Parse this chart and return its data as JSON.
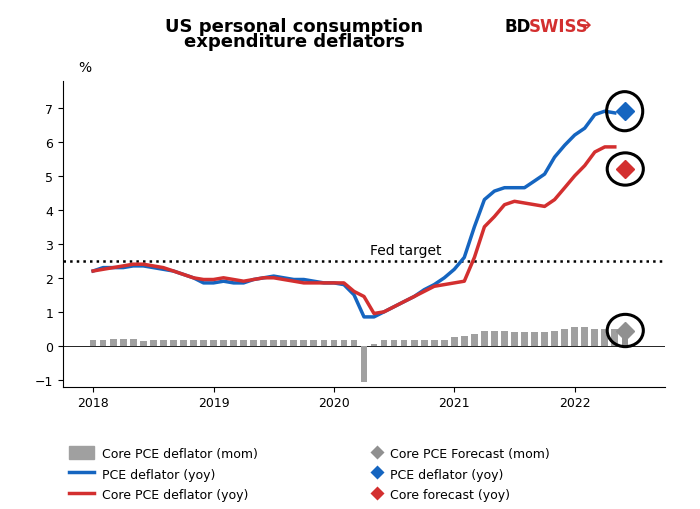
{
  "title_line1": "US personal consumption",
  "title_line2": "expenditure deflators",
  "ylabel": "%",
  "ylim": [
    -1.2,
    7.8
  ],
  "yticks": [
    -1,
    0,
    1,
    2,
    3,
    4,
    5,
    6,
    7
  ],
  "xlim": [
    2017.75,
    2022.75
  ],
  "fed_target": 2.5,
  "fed_target_label": "Fed target",
  "background_color": "#ffffff",
  "bar_dates": [
    2018.0,
    2018.083,
    2018.167,
    2018.25,
    2018.333,
    2018.417,
    2018.5,
    2018.583,
    2018.667,
    2018.75,
    2018.833,
    2018.917,
    2019.0,
    2019.083,
    2019.167,
    2019.25,
    2019.333,
    2019.417,
    2019.5,
    2019.583,
    2019.667,
    2019.75,
    2019.833,
    2019.917,
    2020.0,
    2020.083,
    2020.167,
    2020.25,
    2020.333,
    2020.417,
    2020.5,
    2020.583,
    2020.667,
    2020.75,
    2020.833,
    2020.917,
    2021.0,
    2021.083,
    2021.167,
    2021.25,
    2021.333,
    2021.417,
    2021.5,
    2021.583,
    2021.667,
    2021.75,
    2021.833,
    2021.917,
    2022.0,
    2022.083,
    2022.167,
    2022.25,
    2022.333
  ],
  "bar_values": [
    0.18,
    0.18,
    0.2,
    0.2,
    0.2,
    0.15,
    0.18,
    0.18,
    0.18,
    0.18,
    0.18,
    0.18,
    0.18,
    0.18,
    0.18,
    0.18,
    0.18,
    0.18,
    0.18,
    0.18,
    0.18,
    0.18,
    0.18,
    0.18,
    0.18,
    0.18,
    0.18,
    -1.05,
    0.05,
    0.18,
    0.18,
    0.18,
    0.18,
    0.18,
    0.18,
    0.18,
    0.25,
    0.3,
    0.35,
    0.45,
    0.45,
    0.45,
    0.4,
    0.4,
    0.4,
    0.4,
    0.45,
    0.5,
    0.55,
    0.55,
    0.5,
    0.5,
    0.5
  ],
  "bar_forecast_date": 2022.417,
  "bar_forecast_value": 0.45,
  "pce_dates": [
    2018.0,
    2018.083,
    2018.167,
    2018.25,
    2018.333,
    2018.417,
    2018.5,
    2018.583,
    2018.667,
    2018.75,
    2018.833,
    2018.917,
    2019.0,
    2019.083,
    2019.167,
    2019.25,
    2019.333,
    2019.417,
    2019.5,
    2019.583,
    2019.667,
    2019.75,
    2019.833,
    2019.917,
    2020.0,
    2020.083,
    2020.167,
    2020.25,
    2020.333,
    2020.417,
    2020.5,
    2020.583,
    2020.667,
    2020.75,
    2020.833,
    2020.917,
    2021.0,
    2021.083,
    2021.167,
    2021.25,
    2021.333,
    2021.417,
    2021.5,
    2021.583,
    2021.667,
    2021.75,
    2021.833,
    2021.917,
    2022.0,
    2022.083,
    2022.167,
    2022.25,
    2022.333
  ],
  "pce_values": [
    2.2,
    2.3,
    2.3,
    2.3,
    2.35,
    2.35,
    2.3,
    2.25,
    2.2,
    2.1,
    2.0,
    1.85,
    1.85,
    1.9,
    1.85,
    1.85,
    1.95,
    2.0,
    2.05,
    2.0,
    1.95,
    1.95,
    1.9,
    1.85,
    1.85,
    1.8,
    1.5,
    0.85,
    0.85,
    1.0,
    1.15,
    1.3,
    1.45,
    1.65,
    1.8,
    2.0,
    2.25,
    2.6,
    3.5,
    4.3,
    4.55,
    4.65,
    4.65,
    4.65,
    4.85,
    5.05,
    5.55,
    5.9,
    6.2,
    6.4,
    6.8,
    6.9,
    6.85
  ],
  "pce_forecast_value": 6.9,
  "pce_forecast_date": 2022.417,
  "core_dates": [
    2018.0,
    2018.083,
    2018.167,
    2018.25,
    2018.333,
    2018.417,
    2018.5,
    2018.583,
    2018.667,
    2018.75,
    2018.833,
    2018.917,
    2019.0,
    2019.083,
    2019.167,
    2019.25,
    2019.333,
    2019.417,
    2019.5,
    2019.583,
    2019.667,
    2019.75,
    2019.833,
    2019.917,
    2020.0,
    2020.083,
    2020.167,
    2020.25,
    2020.333,
    2020.417,
    2020.5,
    2020.583,
    2020.667,
    2020.75,
    2020.833,
    2020.917,
    2021.0,
    2021.083,
    2021.167,
    2021.25,
    2021.333,
    2021.417,
    2021.5,
    2021.583,
    2021.667,
    2021.75,
    2021.833,
    2021.917,
    2022.0,
    2022.083,
    2022.167,
    2022.25,
    2022.333
  ],
  "core_values": [
    2.2,
    2.25,
    2.3,
    2.35,
    2.4,
    2.4,
    2.35,
    2.3,
    2.2,
    2.1,
    2.0,
    1.95,
    1.95,
    2.0,
    1.95,
    1.9,
    1.95,
    2.0,
    2.0,
    1.95,
    1.9,
    1.85,
    1.85,
    1.85,
    1.85,
    1.85,
    1.6,
    1.45,
    0.95,
    1.0,
    1.15,
    1.3,
    1.45,
    1.6,
    1.75,
    1.8,
    1.85,
    1.9,
    2.6,
    3.5,
    3.8,
    4.15,
    4.25,
    4.2,
    4.15,
    4.1,
    4.3,
    4.65,
    5.0,
    5.3,
    5.7,
    5.85,
    5.85
  ],
  "core_forecast_value": 5.2,
  "core_forecast_date": 2022.417,
  "bar_color": "#a0a0a0",
  "bar_forecast_color": "#909090",
  "pce_line_color": "#1565c0",
  "core_line_color": "#d32f2f",
  "fed_target_color": "#000000",
  "legend_left": [
    {
      "label": "Core PCE deflator (mom)",
      "type": "bar",
      "color": "#a0a0a0"
    },
    {
      "label": "PCE deflator (yoy)",
      "type": "line",
      "color": "#1565c0"
    },
    {
      "label": "Core PCE deflator (yoy)",
      "type": "line",
      "color": "#d32f2f"
    }
  ],
  "legend_right": [
    {
      "label": "Core PCE Forecast (mom)",
      "type": "diamond",
      "color": "#909090"
    },
    {
      "label": "PCE deflator (yoy)",
      "type": "diamond",
      "color": "#1565c0"
    },
    {
      "label": "Core forecast (yoy)",
      "type": "diamond",
      "color": "#d32f2f"
    }
  ]
}
